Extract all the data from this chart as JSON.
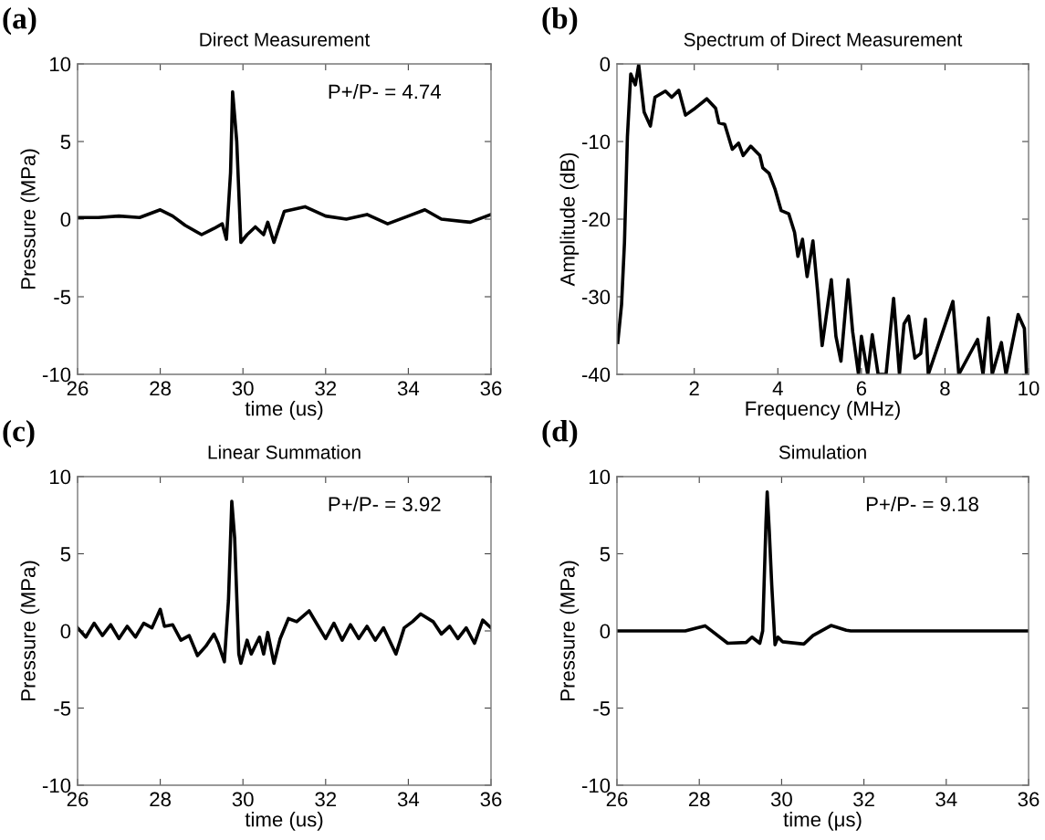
{
  "chart_data": [
    {
      "type": "line",
      "title": "Direct Measurement",
      "xlabel": "time (us)",
      "ylabel": "Pressure (MPa)",
      "annotations": [
        "(a)",
        "P+/P- = 4.74"
      ],
      "xlim": [
        26,
        36
      ],
      "xticks": [
        26,
        28,
        30,
        32,
        34,
        36
      ],
      "ylim": [
        -10,
        10
      ],
      "yticks": [
        -10,
        -5,
        0,
        5,
        10
      ],
      "grid": false,
      "legend": false,
      "series": [
        {
          "color": "#000000",
          "x": [
            26,
            26.5,
            27,
            27.5,
            28,
            28.3,
            28.6,
            29,
            29.3,
            29.5,
            29.6,
            29.7,
            29.75,
            29.85,
            29.95,
            30.1,
            30.3,
            30.5,
            30.6,
            30.75,
            31,
            31.5,
            32,
            32.5,
            33,
            33.5,
            34,
            34.4,
            34.8,
            35.5,
            36
          ],
          "values": [
            0.1,
            0.1,
            0.2,
            0.1,
            0.6,
            0.2,
            -0.4,
            -1.0,
            -0.6,
            -0.3,
            -1.3,
            3,
            8.2,
            5,
            -1.5,
            -1.0,
            -0.5,
            -1.0,
            -0.2,
            -1.5,
            0.5,
            0.8,
            0.2,
            0.0,
            0.3,
            -0.3,
            0.2,
            0.6,
            0.0,
            -0.2,
            0.3
          ]
        }
      ]
    },
    {
      "type": "line",
      "title": "Spectrum of Direct Measurement",
      "xlabel": "Frequency (MHz)",
      "ylabel": "Amplitude (dB)",
      "annotations": [
        "(b)"
      ],
      "xlim": [
        0.15,
        10
      ],
      "xticks": [
        2,
        4,
        6,
        8,
        10
      ],
      "ylim": [
        -40,
        0
      ],
      "yticks": [
        -40,
        -30,
        -20,
        -10,
        0
      ],
      "grid": false,
      "legend": false,
      "series": [
        {
          "color": "#000000",
          "x": [
            0.17,
            0.26,
            0.33,
            0.4,
            0.48,
            0.59,
            0.67,
            0.8,
            0.95,
            1.06,
            1.31,
            1.46,
            1.63,
            1.79,
            2.0,
            2.3,
            2.51,
            2.59,
            2.73,
            2.91,
            3.06,
            3.17,
            3.35,
            3.57,
            3.64,
            3.79,
            3.93,
            4.08,
            4.26,
            4.4,
            4.48,
            4.59,
            4.7,
            4.84,
            4.95,
            5.06,
            5.28,
            5.39,
            5.51,
            5.68,
            5.79,
            5.93,
            6.0,
            6.15,
            6.26,
            6.4,
            6.59,
            6.77,
            6.91,
            7.02,
            7.13,
            7.28,
            7.42,
            7.53,
            7.6,
            8.19,
            8.33,
            8.78,
            8.91,
            9.04,
            9.13,
            9.35,
            9.46,
            9.75,
            9.9,
            9.95
          ],
          "values": [
            -35.9,
            -31,
            -23,
            -9.4,
            -1.3,
            -2.7,
            -0.1,
            -6.2,
            -8.0,
            -4.3,
            -3.5,
            -4.3,
            -3.4,
            -6.6,
            -5.8,
            -4.5,
            -5.7,
            -7.6,
            -7.8,
            -11,
            -10.2,
            -11.8,
            -10.6,
            -11.8,
            -13.4,
            -14.1,
            -16.1,
            -18.9,
            -19.3,
            -21.7,
            -24.8,
            -22.6,
            -27.4,
            -22.8,
            -29.2,
            -36.3,
            -27.8,
            -35.1,
            -38.3,
            -27.8,
            -34.5,
            -40,
            -35.1,
            -40,
            -34.9,
            -40,
            -40,
            -30.2,
            -40,
            -33.5,
            -32.5,
            -37.9,
            -37.3,
            -32.9,
            -40,
            -30.6,
            -40,
            -35.5,
            -40,
            -32.7,
            -40,
            -35.9,
            -40,
            -32.3,
            -34.1,
            -40
          ]
        }
      ]
    },
    {
      "type": "line",
      "title": "Linear Summation",
      "xlabel": "time (us)",
      "ylabel": "Pressure (MPa)",
      "annotations": [
        "(c)",
        "P+/P- = 3.92"
      ],
      "xlim": [
        26,
        36
      ],
      "xticks": [
        26,
        28,
        30,
        32,
        34,
        36
      ],
      "ylim": [
        -10,
        10
      ],
      "yticks": [
        -10,
        -5,
        0,
        5,
        10
      ],
      "grid": false,
      "legend": false,
      "series": [
        {
          "color": "#000000",
          "x": [
            26,
            26.2,
            26.4,
            26.6,
            26.8,
            27.0,
            27.2,
            27.4,
            27.6,
            27.8,
            28.0,
            28.1,
            28.3,
            28.5,
            28.7,
            28.9,
            29.1,
            29.3,
            29.4,
            29.55,
            29.65,
            29.73,
            29.8,
            29.9,
            29.95,
            30.1,
            30.2,
            30.4,
            30.5,
            30.6,
            30.75,
            30.9,
            31.1,
            31.3,
            31.6,
            31.8,
            32,
            32.2,
            32.4,
            32.6,
            32.8,
            33.0,
            33.2,
            33.4,
            33.7,
            33.9,
            34.1,
            34.3,
            34.6,
            34.8,
            35.0,
            35.2,
            35.4,
            35.6,
            35.8,
            36
          ],
          "values": [
            0.2,
            -0.4,
            0.5,
            -0.3,
            0.4,
            -0.5,
            0.3,
            -0.4,
            0.5,
            0.2,
            1.4,
            0.3,
            0.4,
            -0.6,
            -0.3,
            -1.6,
            -1.0,
            -0.2,
            -0.8,
            -2.0,
            2,
            8.4,
            6,
            -1.5,
            -2.1,
            -0.6,
            -1.5,
            -0.4,
            -1.5,
            -0.1,
            -2.1,
            -0.5,
            0.8,
            0.6,
            1.3,
            0.4,
            -0.5,
            0.5,
            -0.6,
            0.4,
            -0.5,
            0.3,
            -0.6,
            0.2,
            -1.5,
            0.2,
            0.6,
            1.1,
            0.6,
            -0.2,
            0.3,
            -0.5,
            0.2,
            -0.8,
            0.7,
            0.2
          ]
        }
      ]
    },
    {
      "type": "line",
      "title": "Simulation",
      "xlabel": "time (μs)",
      "ylabel": "Pressure (MPa)",
      "annotations": [
        "(d)",
        "P+/P- = 9.18"
      ],
      "xlim": [
        26,
        36
      ],
      "xticks": [
        26,
        28,
        30,
        32,
        34,
        36
      ],
      "ylim": [
        -10,
        10
      ],
      "yticks": [
        -10,
        -5,
        0,
        5,
        10
      ],
      "grid": false,
      "legend": false,
      "series": [
        {
          "color": "#000000",
          "x": [
            26,
            27.66,
            28.14,
            28.69,
            29.14,
            29.28,
            29.47,
            29.54,
            29.62,
            29.65,
            29.7,
            29.76,
            29.84,
            29.91,
            30.02,
            30.54,
            30.76,
            31.2,
            31.57,
            31.68,
            36
          ],
          "values": [
            0,
            0,
            0.33,
            -0.8,
            -0.75,
            -0.4,
            -0.8,
            0,
            7,
            9.0,
            6.5,
            3,
            -0.9,
            -0.4,
            -0.7,
            -0.85,
            -0.3,
            0.35,
            0.05,
            0,
            0
          ]
        }
      ]
    }
  ]
}
